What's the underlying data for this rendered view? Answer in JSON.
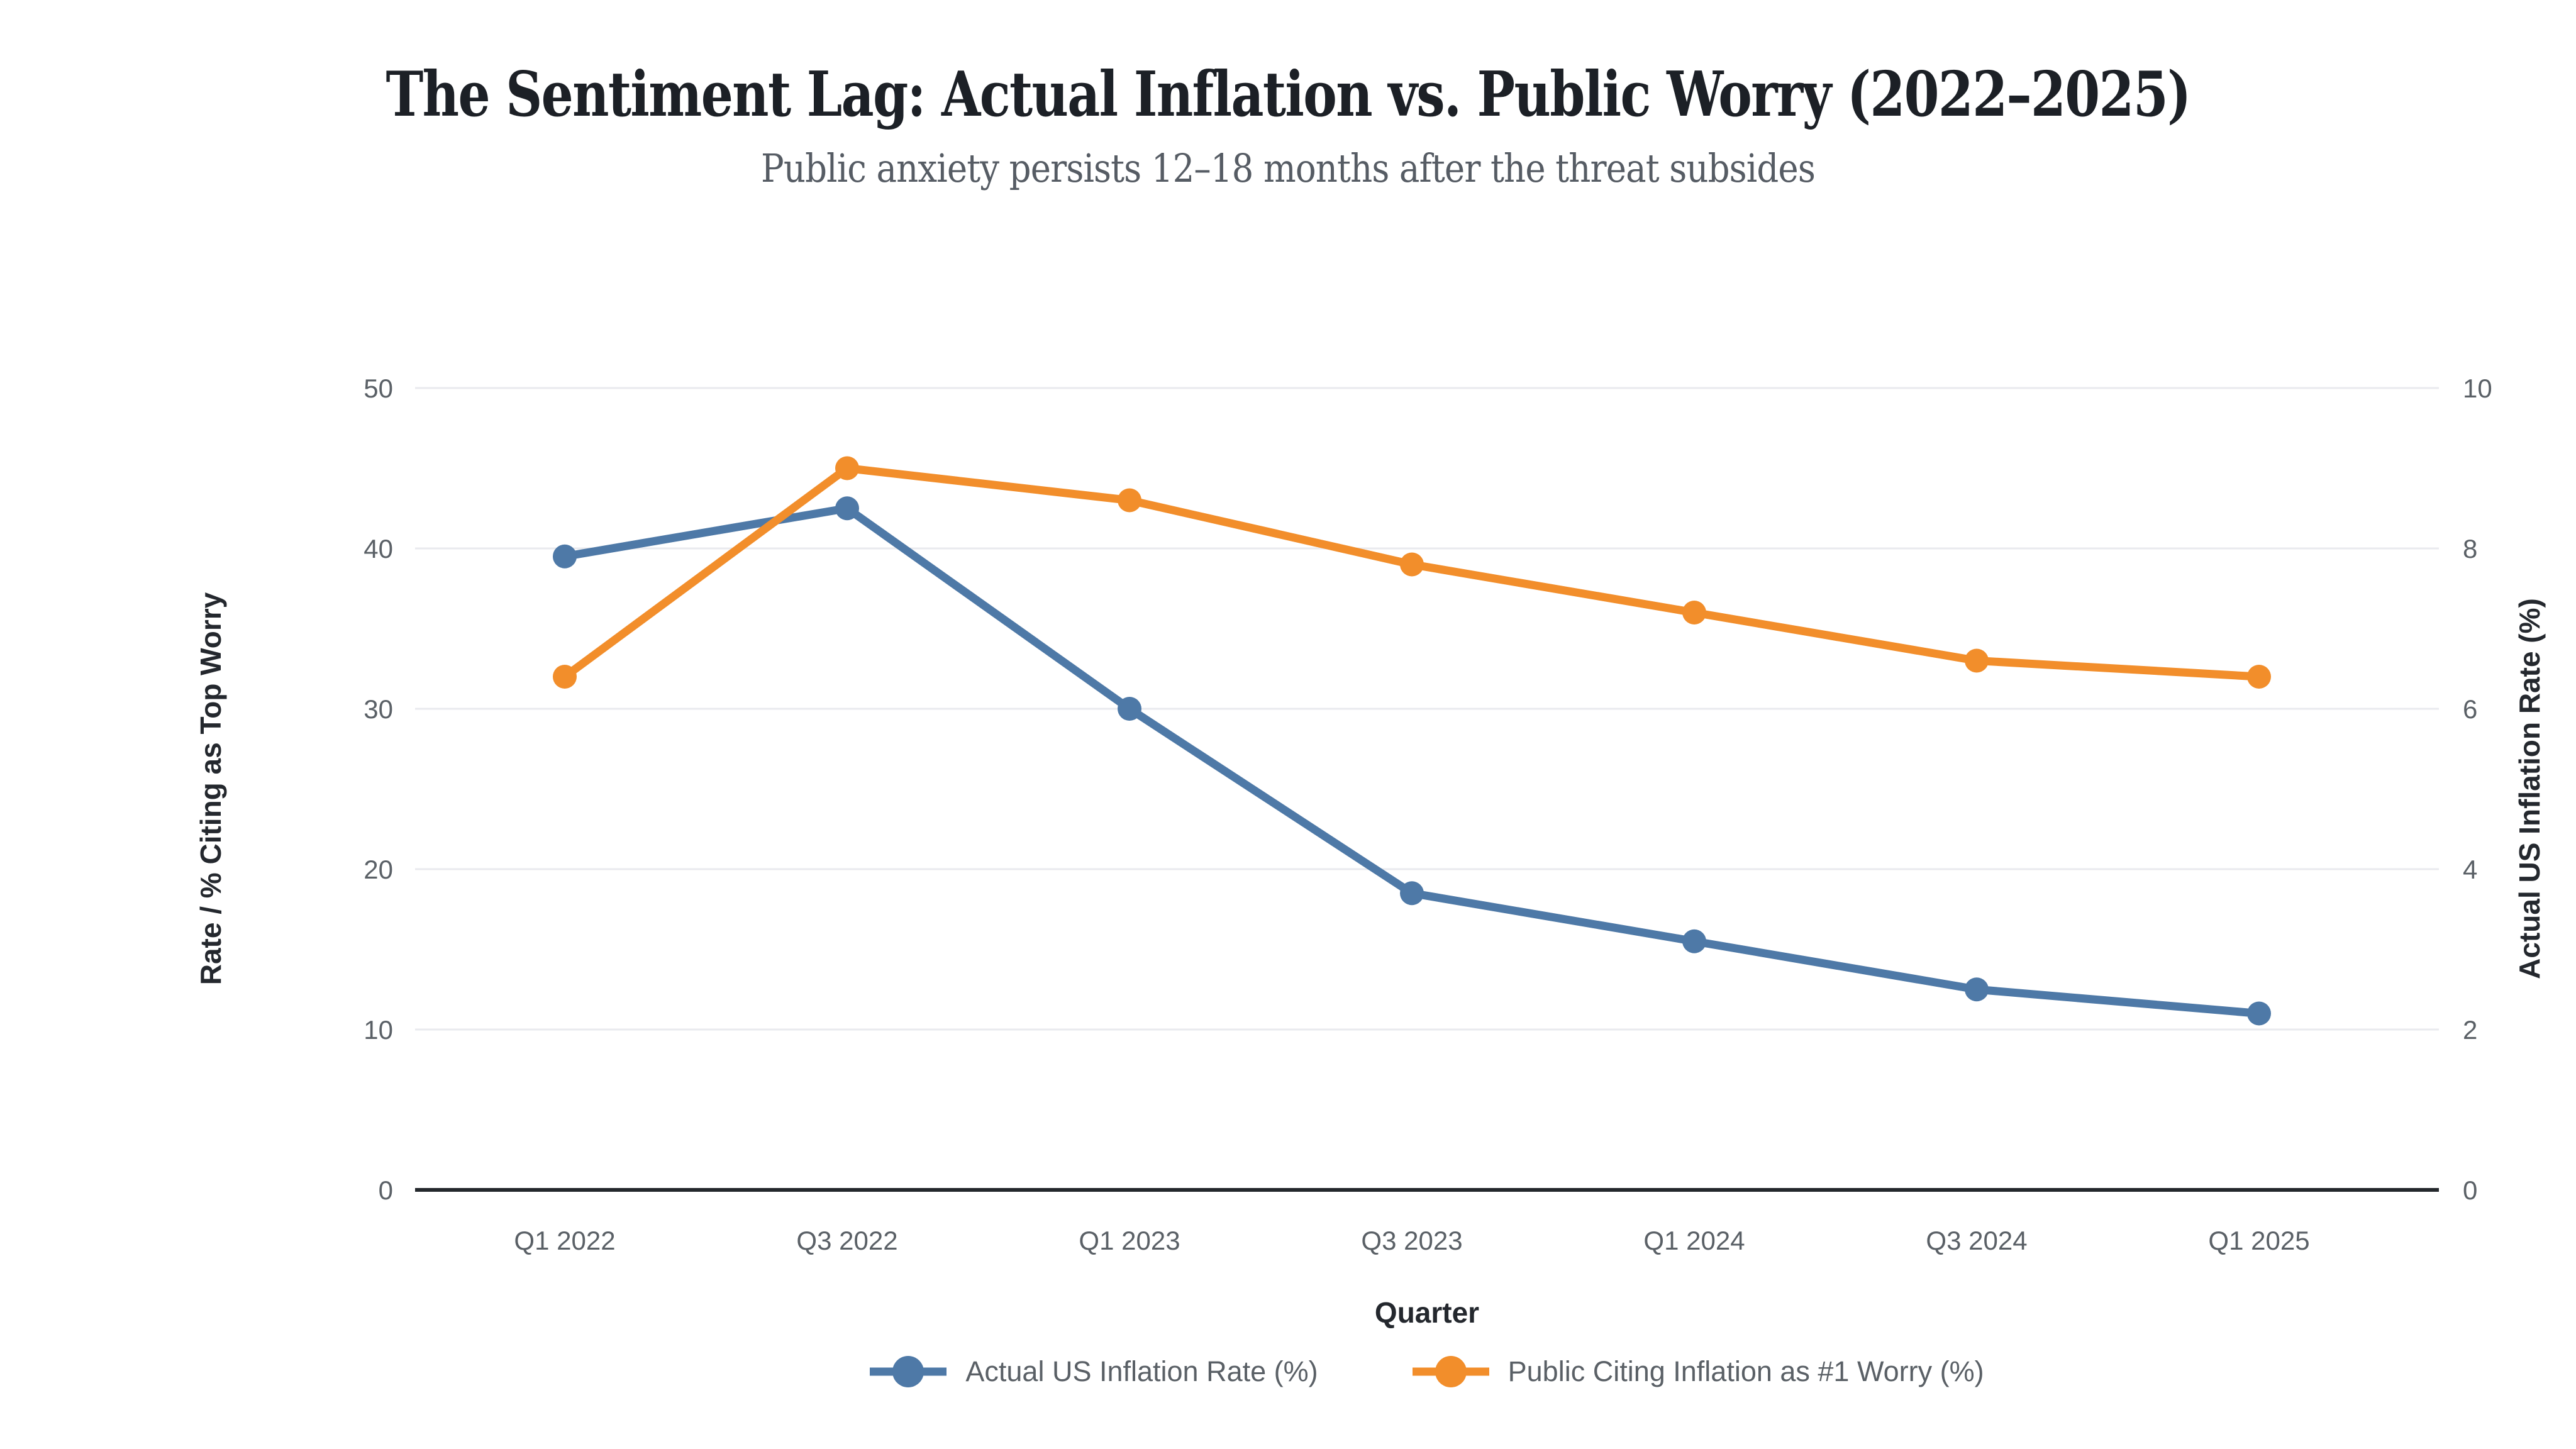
{
  "header": {
    "title": "The Sentiment Lag: Actual Inflation vs. Public Worry (2022–2025)",
    "subtitle": "Public anxiety persists 12–18 months after the threat subsides"
  },
  "chart_data": {
    "type": "line",
    "x_categories": [
      "Q1 2022",
      "Q3 2022",
      "Q1 2023",
      "Q3 2023",
      "Q1 2024",
      "Q3 2024",
      "Q1 2025"
    ],
    "series": [
      {
        "name": "Actual US Inflation Rate (%)",
        "axis": "right",
        "color": "#4e79a7",
        "values": [
          7.9,
          8.5,
          6.0,
          3.7,
          3.1,
          2.5,
          2.2
        ]
      },
      {
        "name": "Public Citing Inflation as #1 Worry (%)",
        "axis": "left",
        "color": "#f28e2b",
        "values": [
          32,
          45,
          43,
          39,
          36,
          33,
          32
        ]
      }
    ],
    "left_axis": {
      "label": "Rate / % Citing as Top Worry",
      "min": 0,
      "max": 50,
      "ticks": [
        0,
        10,
        20,
        30,
        40,
        50
      ]
    },
    "right_axis": {
      "label": "Actual US Inflation Rate (%)",
      "min": 0,
      "max": 10,
      "ticks": [
        0,
        2,
        4,
        6,
        8,
        10
      ]
    },
    "x_axis": {
      "label": "Quarter"
    },
    "grid": "horizontal-only",
    "legend_position": "bottom"
  },
  "colors": {
    "grid_line": "#e9eaee",
    "axis_line": "#24282c",
    "tick_text": "#5a6066",
    "title_text": "#1c2026",
    "subtitle_text": "#565c64"
  }
}
